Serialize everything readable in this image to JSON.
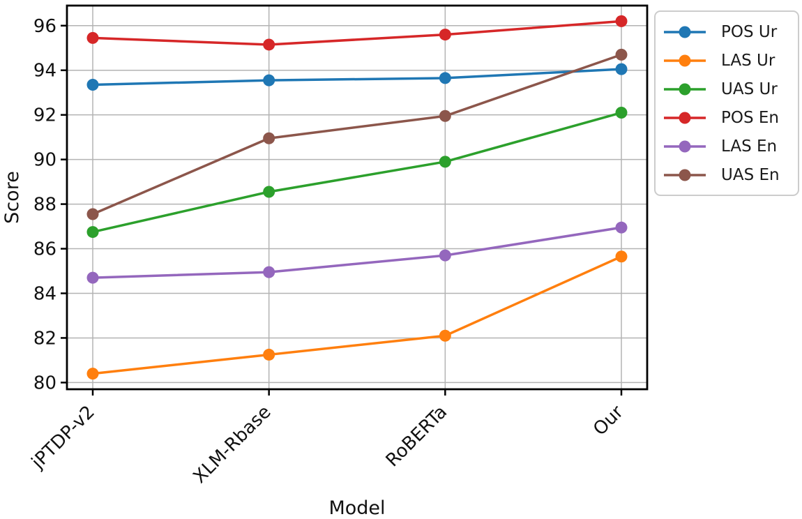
{
  "chart_data": {
    "type": "line",
    "title": "",
    "xlabel": "Model",
    "ylabel": "Score",
    "categories": [
      "jPTDP-v2",
      "XLM-Rbase",
      "RoBERTa",
      "Our"
    ],
    "yticks": [
      80,
      82,
      84,
      86,
      88,
      90,
      92,
      94,
      96
    ],
    "ylim": [
      79.7,
      96.9
    ],
    "grid": true,
    "legend_position": "outside-right",
    "colors": {
      "blue": "#1f77b4",
      "orange": "#ff7f0e",
      "green": "#2ca02c",
      "red": "#d62728",
      "purple": "#9467bd",
      "brown": "#8c564b"
    },
    "series": [
      {
        "name": "POS Ur",
        "color": "#1f77b4",
        "values": [
          93.35,
          93.55,
          93.65,
          94.05
        ]
      },
      {
        "name": "LAS Ur",
        "color": "#ff7f0e",
        "values": [
          80.4,
          81.25,
          82.1,
          85.65
        ]
      },
      {
        "name": "UAS Ur",
        "color": "#2ca02c",
        "values": [
          86.75,
          88.55,
          89.9,
          92.1
        ]
      },
      {
        "name": "POS En",
        "color": "#d62728",
        "values": [
          95.45,
          95.15,
          95.6,
          96.2
        ]
      },
      {
        "name": "LAS En",
        "color": "#9467bd",
        "values": [
          84.7,
          84.95,
          85.7,
          86.95
        ]
      },
      {
        "name": "UAS En",
        "color": "#8c564b",
        "values": [
          87.55,
          90.95,
          91.95,
          94.7
        ]
      }
    ]
  }
}
